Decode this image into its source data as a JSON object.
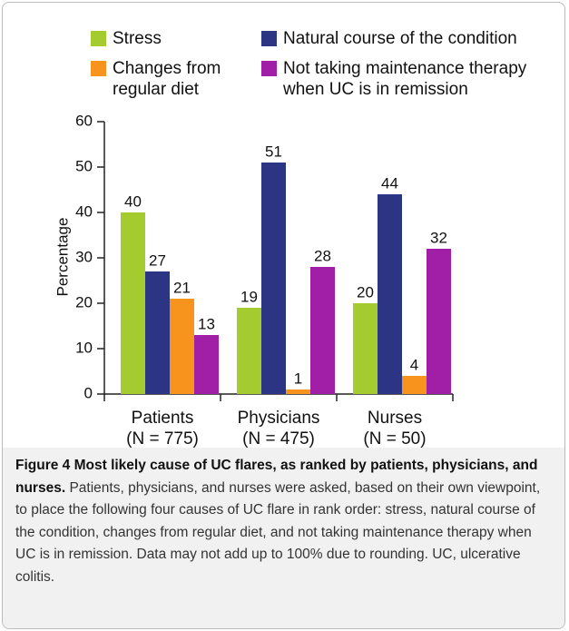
{
  "chart_data": {
    "type": "bar",
    "y_label": "Percentage",
    "categories": [
      "Patients",
      "Physicians",
      "Nurses"
    ],
    "category_notes": [
      "(N = 775)",
      "(N = 475)",
      "(N = 50)"
    ],
    "series": [
      {
        "name": "Stress",
        "color": "#a4cc2f",
        "values": [
          40,
          19,
          20
        ]
      },
      {
        "name": "Natural course of the condition",
        "color": "#2b3584",
        "values": [
          27,
          51,
          44
        ]
      },
      {
        "name": "Changes from regular diet",
        "color": "#f7941d",
        "values": [
          21,
          1,
          4
        ]
      },
      {
        "name": "Not taking maintenance therapy when UC is in remission",
        "color": "#a01fa6",
        "values": [
          13,
          28,
          32
        ]
      }
    ],
    "ylim": [
      0,
      60
    ],
    "yticks": [
      0,
      10,
      20,
      30,
      40,
      50,
      60
    ]
  },
  "caption": {
    "label": "Figure 4 Most likely cause of UC flares, as ranked by patients, physicians, and nurses.",
    "text": "Patients, physicians, and nurses were asked, based on their own viewpoint, to place the following four causes of UC flare in rank order: stress, natural course of the condition, changes from regular diet, and not taking maintenance therapy when UC is in remission. Data may not add up to 100% due to rounding. UC, ulcerative colitis."
  }
}
